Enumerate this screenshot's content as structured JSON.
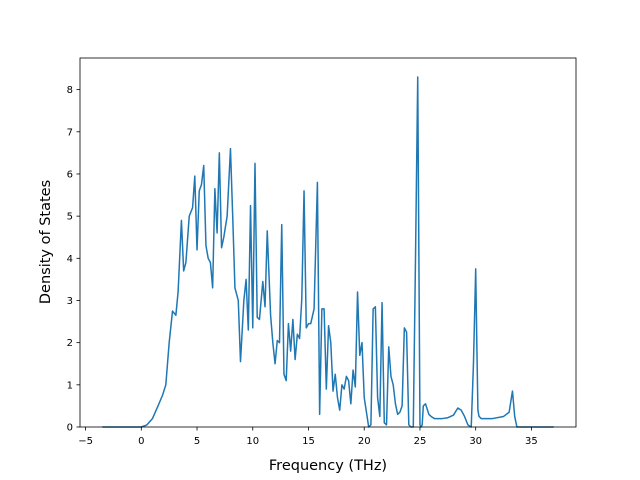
{
  "chart_data": {
    "type": "line",
    "title": "",
    "xlabel": "Frequency (THz)",
    "ylabel": "Density of States",
    "xlim": [
      -5.5,
      39
    ],
    "ylim": [
      0,
      8.75
    ],
    "xticks": [
      -5,
      0,
      5,
      10,
      15,
      20,
      25,
      30,
      35
    ],
    "yticks": [
      0,
      1,
      2,
      3,
      4,
      5,
      6,
      7,
      8
    ],
    "grid": false,
    "legend": "none",
    "line_color": "#1f77b4",
    "series": [
      {
        "name": "",
        "x": [
          -3.5,
          -2.0,
          0.0,
          0.5,
          1.0,
          1.5,
          1.9,
          2.2,
          2.5,
          2.8,
          3.1,
          3.3,
          3.6,
          3.8,
          4.0,
          4.3,
          4.6,
          4.8,
          5.0,
          5.2,
          5.4,
          5.6,
          5.8,
          6.0,
          6.2,
          6.4,
          6.6,
          6.8,
          7.0,
          7.2,
          7.4,
          7.7,
          8.0,
          8.2,
          8.4,
          8.7,
          8.9,
          9.2,
          9.4,
          9.6,
          9.8,
          10.0,
          10.2,
          10.4,
          10.6,
          10.9,
          11.1,
          11.3,
          11.6,
          11.8,
          12.0,
          12.2,
          12.4,
          12.6,
          12.8,
          13.0,
          13.2,
          13.4,
          13.6,
          13.8,
          14.0,
          14.2,
          14.4,
          14.6,
          14.8,
          15.0,
          15.2,
          15.5,
          15.8,
          16.0,
          16.2,
          16.4,
          16.6,
          16.8,
          17.0,
          17.2,
          17.4,
          17.6,
          17.8,
          18.0,
          18.2,
          18.4,
          18.6,
          18.8,
          19.0,
          19.2,
          19.4,
          19.6,
          19.8,
          20.0,
          20.2,
          20.4,
          20.6,
          20.8,
          21.0,
          21.2,
          21.4,
          21.6,
          21.8,
          22.0,
          22.2,
          22.4,
          22.6,
          22.8,
          23.0,
          23.2,
          23.4,
          23.6,
          23.8,
          24.0,
          24.2,
          24.4,
          24.6,
          24.8,
          25.0,
          25.1,
          25.2,
          25.3,
          25.5,
          25.8,
          26.0,
          26.3,
          26.6,
          27.0,
          27.5,
          28.0,
          28.4,
          28.7,
          29.0,
          29.3,
          29.6,
          29.8,
          30.0,
          30.1,
          30.2,
          30.3,
          30.5,
          30.8,
          31.5,
          32.5,
          33.0,
          33.3,
          33.5,
          33.7,
          34.0,
          35.0,
          37.0
        ],
        "y": [
          0,
          0,
          0,
          0.05,
          0.2,
          0.5,
          0.75,
          1.0,
          2.0,
          2.75,
          2.65,
          3.2,
          4.9,
          3.7,
          3.9,
          5.0,
          5.2,
          5.95,
          4.2,
          5.6,
          5.75,
          6.2,
          4.3,
          4.0,
          3.9,
          3.3,
          5.65,
          4.6,
          6.5,
          4.25,
          4.5,
          5.0,
          6.6,
          5.0,
          3.3,
          3.0,
          1.55,
          3.0,
          3.5,
          2.3,
          5.25,
          2.35,
          6.25,
          2.6,
          2.55,
          3.45,
          2.85,
          4.65,
          2.65,
          2.0,
          1.5,
          2.05,
          2.0,
          4.8,
          1.25,
          1.1,
          2.45,
          1.8,
          2.55,
          1.6,
          2.2,
          2.1,
          3.05,
          5.6,
          2.35,
          2.45,
          2.45,
          2.8,
          5.8,
          0.3,
          2.8,
          2.8,
          0.9,
          2.4,
          2.0,
          0.85,
          1.25,
          0.7,
          0.4,
          1.0,
          0.9,
          1.2,
          1.1,
          0.55,
          1.35,
          0.95,
          3.2,
          1.7,
          2.0,
          0.7,
          0.35,
          0.0,
          0.05,
          2.8,
          2.85,
          0.7,
          0.25,
          2.95,
          0.1,
          0.05,
          1.9,
          1.2,
          1.0,
          0.55,
          0.3,
          0.35,
          0.5,
          2.35,
          2.25,
          0.05,
          0.0,
          0.0,
          4.0,
          8.3,
          0.05,
          0.0,
          0.05,
          0.5,
          0.55,
          0.3,
          0.25,
          0.2,
          0.2,
          0.2,
          0.22,
          0.28,
          0.45,
          0.4,
          0.25,
          0.05,
          0.0,
          1.5,
          3.75,
          2.0,
          0.4,
          0.25,
          0.2,
          0.2,
          0.2,
          0.25,
          0.35,
          0.85,
          0.25,
          0.0,
          0.0,
          0.0,
          0.0
        ]
      }
    ]
  }
}
